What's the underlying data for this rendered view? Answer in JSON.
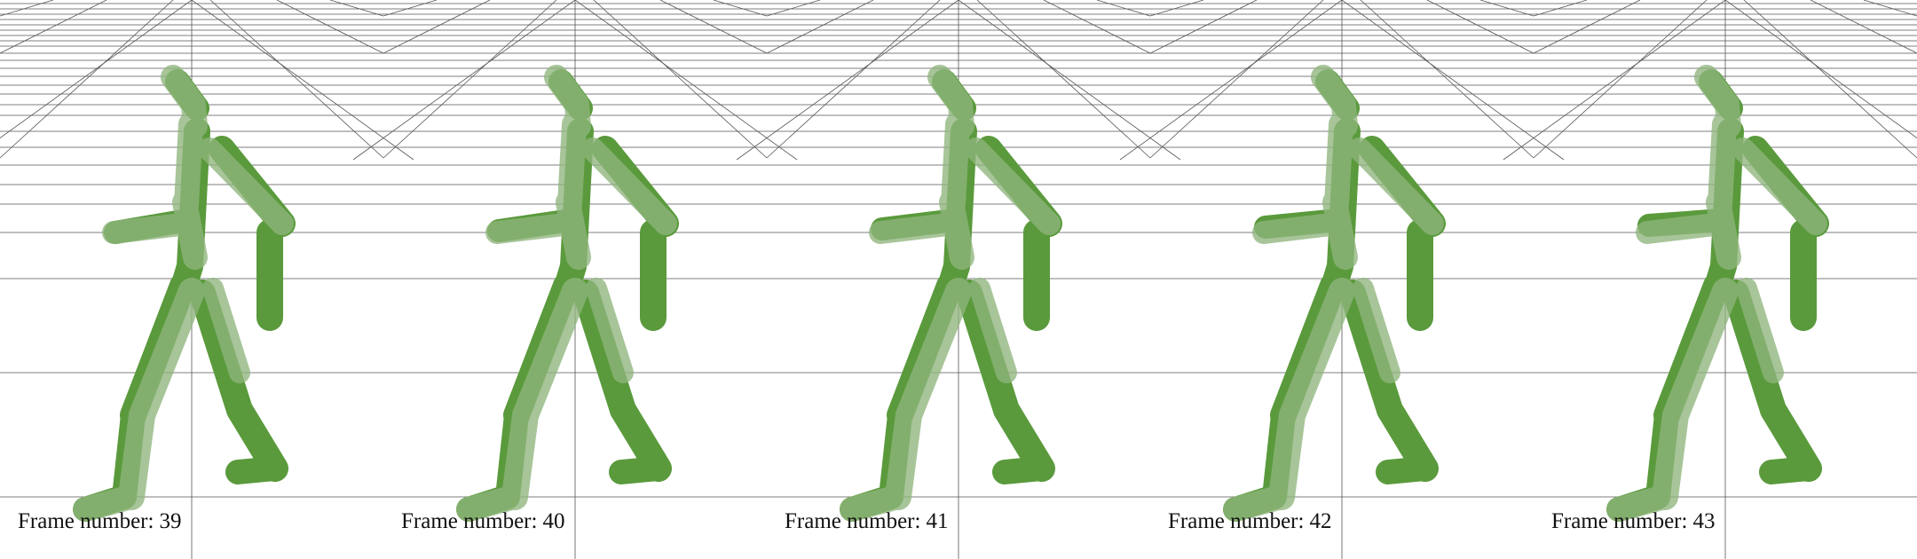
{
  "frame_caption": "Frame number:",
  "frames": [
    {
      "number": "39"
    },
    {
      "number": "40"
    },
    {
      "number": "41"
    },
    {
      "number": "42"
    },
    {
      "number": "43"
    }
  ],
  "colors": {
    "grid_line": "#555555",
    "limb_dark": "#5a9a3c",
    "limb_light": "#8fb57d",
    "limb_highlight": "#c9d8bf"
  }
}
